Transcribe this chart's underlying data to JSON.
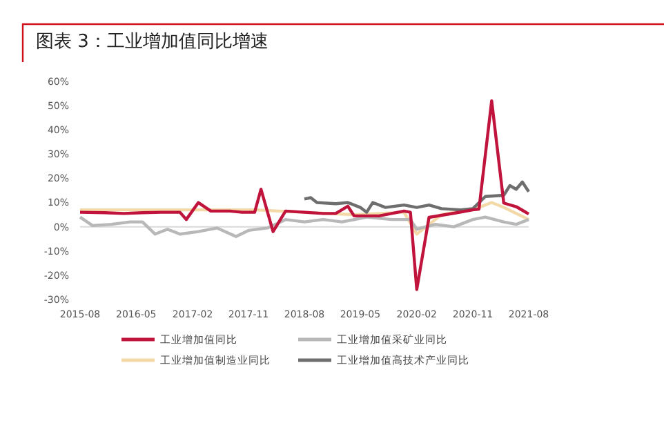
{
  "chart_data": {
    "type": "line",
    "title": "图表 3：工业增加值同比增速",
    "xlim": [
      "2015-08",
      "2021-08"
    ],
    "xticks": [
      "2015-08",
      "2016-05",
      "2017-02",
      "2017-11",
      "2018-08",
      "2019-05",
      "2020-02",
      "2020-11",
      "2021-08"
    ],
    "ylim": [
      -30,
      60
    ],
    "yticks": [
      {
        "value": 60,
        "label": "60%"
      },
      {
        "value": 50,
        "label": "50%"
      },
      {
        "value": 40,
        "label": "40%"
      },
      {
        "value": 30,
        "label": "30%"
      },
      {
        "value": 20,
        "label": "20%"
      },
      {
        "value": 10,
        "label": "10%"
      },
      {
        "value": 0,
        "label": "0%"
      },
      {
        "value": -10,
        "label": "-10%"
      },
      {
        "value": -20,
        "label": "-20%"
      },
      {
        "value": -30,
        "label": "-30%"
      }
    ],
    "ref_lines": [
      {
        "axis": "y",
        "value": 0,
        "color": "#d9d9d9"
      }
    ],
    "legend": "bottom",
    "marker": "none",
    "line_style": "solid",
    "series": [
      {
        "name": "工业增加值制造业同比",
        "color": "#f3d9a8",
        "x": [
          "2015-08",
          "2016-08",
          "2017-03",
          "2017-12",
          "2018-08",
          "2019-04",
          "2019-12",
          "2020-02",
          "2020-06",
          "2020-12",
          "2021-02",
          "2021-04",
          "2021-08"
        ],
        "values": [
          7,
          7,
          7,
          7,
          6,
          5,
          6,
          -3,
          5,
          8,
          10,
          8,
          3
        ]
      },
      {
        "name": "工业增加值采矿业同比",
        "color": "#b8b8b8",
        "x": [
          "2015-08",
          "2015-10",
          "2016-01",
          "2016-04",
          "2016-06",
          "2016-08",
          "2016-10",
          "2016-12",
          "2017-03",
          "2017-06",
          "2017-09",
          "2017-11",
          "2018-02",
          "2018-05",
          "2018-08",
          "2018-11",
          "2019-02",
          "2019-06",
          "2019-10",
          "2020-01",
          "2020-02",
          "2020-05",
          "2020-08",
          "2020-11",
          "2021-01",
          "2021-04",
          "2021-06",
          "2021-08"
        ],
        "values": [
          4,
          0.5,
          1,
          2,
          2,
          -3,
          -1,
          -3,
          -2,
          -0.5,
          -4,
          -1.5,
          -0.5,
          3,
          2,
          3,
          2,
          4,
          3,
          3,
          -1,
          1,
          0,
          3,
          4,
          2,
          1,
          3
        ]
      },
      {
        "name": "工业增加值高技术产业同比",
        "color": "#6e6e6e",
        "x": [
          "2018-08",
          "2018-09",
          "2018-10",
          "2019-01",
          "2019-03",
          "2019-05",
          "2019-06",
          "2019-07",
          "2019-09",
          "2019-12",
          "2020-02",
          "2020-04",
          "2020-06",
          "2020-09",
          "2020-11",
          "2021-01",
          "2021-04",
          "2021-05",
          "2021-06",
          "2021-07",
          "2021-08"
        ],
        "values": [
          11.5,
          12,
          10,
          9.5,
          10,
          8,
          6,
          10,
          8,
          9,
          8,
          9,
          7.5,
          7,
          7.5,
          12.5,
          13,
          17,
          15.5,
          18.5,
          14.5
        ]
      },
      {
        "name": "工业增加值同比",
        "color": "#c0143c",
        "x": [
          "2015-08",
          "2015-12",
          "2016-03",
          "2016-06",
          "2016-09",
          "2016-12",
          "2017-01",
          "2017-03",
          "2017-05",
          "2017-08",
          "2017-10",
          "2017-12",
          "2018-01",
          "2018-03",
          "2018-05",
          "2018-08",
          "2018-11",
          "2019-01",
          "2019-03",
          "2019-04",
          "2019-08",
          "2019-12",
          "2020-01",
          "2020-02",
          "2020-04",
          "2020-08",
          "2020-11",
          "2020-12",
          "2021-02",
          "2021-04",
          "2021-06",
          "2021-08"
        ],
        "values": [
          6,
          5.8,
          5.5,
          5.8,
          6,
          6,
          3,
          10,
          6.5,
          6.5,
          6,
          6,
          15.5,
          -2,
          6.5,
          6,
          5.5,
          5.5,
          8.5,
          4.5,
          4.5,
          6.5,
          6,
          -25.9,
          3.9,
          5.6,
          7,
          7.3,
          52,
          9.8,
          8.3,
          5.3
        ]
      }
    ]
  }
}
